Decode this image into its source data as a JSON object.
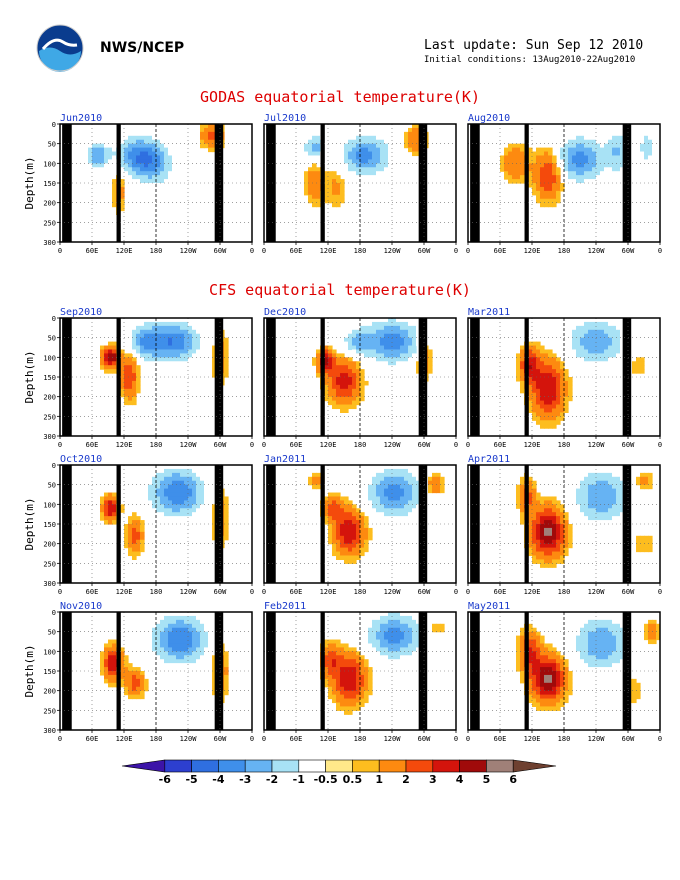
{
  "header": {
    "org": "NWS/NCEP",
    "last_update": "Last update: Sun Sep 12 2010",
    "initial_conditions": "Initial conditions: 13Aug2010-22Aug2010"
  },
  "sections": [
    {
      "title": "GODAS equatorial temperature(K)"
    },
    {
      "title": "CFS equatorial temperature(K)"
    }
  ],
  "colors": {
    "title": "#dd0000",
    "panel_label": "#1a3acc",
    "land_mask": "#000000",
    "palette": [
      "#3c14a8",
      "#2d3fcf",
      "#2f6fe0",
      "#3f8fea",
      "#66b3f3",
      "#a8e2f5",
      "#ffffff",
      "#ffe98a",
      "#fdbd1f",
      "#fd8a10",
      "#f44a0c",
      "#d4140c",
      "#a00a0a",
      "#a08078",
      "#6e4030"
    ]
  },
  "chart_data": {
    "type": "heatmap",
    "variable": "equatorial temperature anomaly (K)",
    "y": {
      "label": "Depth(m)",
      "ticks": [
        "0",
        "50",
        "100",
        "150",
        "200",
        "250",
        "300"
      ],
      "range": [
        0,
        300
      ],
      "inverted": true
    },
    "x": {
      "ticks": [
        "0",
        "60E",
        "120E",
        "180",
        "120W",
        "60W",
        "0"
      ],
      "range_deg_east": [
        0,
        360
      ]
    },
    "colorbar": {
      "labels": [
        "-6",
        "-5",
        "-4",
        "-3",
        "-2",
        "-1",
        "-0.5",
        "0.5",
        "1",
        "2",
        "3",
        "4",
        "5",
        "6"
      ],
      "levels": [
        -6,
        -5,
        -4,
        -3,
        -2,
        -1,
        -0.5,
        0.5,
        1,
        2,
        3,
        4,
        5,
        6
      ]
    },
    "panels": [
      {
        "group": 0,
        "label": "Jun2010",
        "blobs": [
          {
            "lon": 150,
            "depth": 80,
            "w": 40,
            "h": 45,
            "amp": -3.5
          },
          {
            "lon": 175,
            "depth": 110,
            "w": 35,
            "h": 45,
            "amp": -2.0
          },
          {
            "lon": 70,
            "depth": 80,
            "w": 20,
            "h": 30,
            "amp": -3.0
          },
          {
            "lon": 110,
            "depth": 170,
            "w": 12,
            "h": 55,
            "amp": 1.6
          },
          {
            "lon": 285,
            "depth": 30,
            "w": 20,
            "h": 30,
            "amp": 2.5
          }
        ]
      },
      {
        "group": 0,
        "label": "Jul2010",
        "blobs": [
          {
            "lon": 190,
            "depth": 80,
            "w": 40,
            "h": 45,
            "amp": -3.5
          },
          {
            "lon": 95,
            "depth": 60,
            "w": 18,
            "h": 30,
            "amp": -2.5
          },
          {
            "lon": 95,
            "depth": 150,
            "w": 18,
            "h": 55,
            "amp": 1.6
          },
          {
            "lon": 285,
            "depth": 40,
            "w": 20,
            "h": 35,
            "amp": 1.8
          },
          {
            "lon": 135,
            "depth": 160,
            "w": 20,
            "h": 50,
            "amp": 1.2
          }
        ]
      },
      {
        "group": 0,
        "label": "Aug2010",
        "blobs": [
          {
            "lon": 150,
            "depth": 130,
            "w": 25,
            "h": 60,
            "amp": 3.0
          },
          {
            "lon": 210,
            "depth": 90,
            "w": 40,
            "h": 50,
            "amp": -3.5
          },
          {
            "lon": 90,
            "depth": 100,
            "w": 25,
            "h": 45,
            "amp": 2.0
          },
          {
            "lon": 280,
            "depth": 70,
            "w": 20,
            "h": 50,
            "amp": -2.0
          },
          {
            "lon": 335,
            "depth": 60,
            "w": 15,
            "h": 40,
            "amp": -1.5
          }
        ]
      },
      {
        "group": 1,
        "label": "Sep2010",
        "blobs": [
          {
            "lon": 95,
            "depth": 100,
            "w": 15,
            "h": 25,
            "amp": 5.0
          },
          {
            "lon": 130,
            "depth": 150,
            "w": 15,
            "h": 55,
            "amp": 3.0
          },
          {
            "lon": 210,
            "depth": 60,
            "w": 45,
            "h": 45,
            "amp": -4.0
          },
          {
            "lon": 160,
            "depth": 60,
            "w": 25,
            "h": 40,
            "amp": -2.5
          },
          {
            "lon": 300,
            "depth": 100,
            "w": 15,
            "h": 70,
            "amp": 1.5
          }
        ]
      },
      {
        "group": 1,
        "label": "Dec2010",
        "blobs": [
          {
            "lon": 150,
            "depth": 160,
            "w": 30,
            "h": 55,
            "amp": 3.5
          },
          {
            "lon": 115,
            "depth": 110,
            "w": 15,
            "h": 30,
            "amp": 4.0
          },
          {
            "lon": 240,
            "depth": 60,
            "w": 50,
            "h": 50,
            "amp": -3.5
          },
          {
            "lon": 300,
            "depth": 100,
            "w": 15,
            "h": 55,
            "amp": 1.8
          },
          {
            "lon": 175,
            "depth": 60,
            "w": 25,
            "h": 30,
            "amp": -2.0
          }
        ]
      },
      {
        "group": 1,
        "label": "Mar2011",
        "blobs": [
          {
            "lon": 150,
            "depth": 180,
            "w": 30,
            "h": 70,
            "amp": 4.0
          },
          {
            "lon": 115,
            "depth": 120,
            "w": 18,
            "h": 45,
            "amp": 3.5
          },
          {
            "lon": 240,
            "depth": 60,
            "w": 45,
            "h": 50,
            "amp": -3.0
          },
          {
            "lon": 320,
            "depth": 120,
            "w": 15,
            "h": 30,
            "amp": 1.0
          }
        ]
      },
      {
        "group": 1,
        "label": "Oct2010",
        "blobs": [
          {
            "lon": 95,
            "depth": 110,
            "w": 15,
            "h": 30,
            "amp": 4.0
          },
          {
            "lon": 140,
            "depth": 180,
            "w": 15,
            "h": 45,
            "amp": 2.5
          },
          {
            "lon": 220,
            "depth": 70,
            "w": 45,
            "h": 55,
            "amp": -4.0
          },
          {
            "lon": 300,
            "depth": 130,
            "w": 15,
            "h": 80,
            "amp": 1.5
          }
        ]
      },
      {
        "group": 1,
        "label": "Jan2011",
        "blobs": [
          {
            "lon": 160,
            "depth": 170,
            "w": 28,
            "h": 55,
            "amp": 4.0
          },
          {
            "lon": 130,
            "depth": 110,
            "w": 18,
            "h": 30,
            "amp": 2.5
          },
          {
            "lon": 245,
            "depth": 70,
            "w": 45,
            "h": 55,
            "amp": -3.5
          },
          {
            "lon": 320,
            "depth": 50,
            "w": 15,
            "h": 25,
            "amp": 2.0
          },
          {
            "lon": 100,
            "depth": 40,
            "w": 15,
            "h": 20,
            "amp": 1.5
          }
        ]
      },
      {
        "group": 1,
        "label": "Apr2011",
        "blobs": [
          {
            "lon": 150,
            "depth": 170,
            "w": 30,
            "h": 60,
            "amp": 5.2
          },
          {
            "lon": 110,
            "depth": 80,
            "w": 15,
            "h": 45,
            "amp": 2.5
          },
          {
            "lon": 250,
            "depth": 80,
            "w": 45,
            "h": 60,
            "amp": -3.0
          },
          {
            "lon": 330,
            "depth": 200,
            "w": 20,
            "h": 30,
            "amp": 1.0
          },
          {
            "lon": 330,
            "depth": 40,
            "w": 15,
            "h": 25,
            "amp": 1.5
          }
        ]
      },
      {
        "group": 1,
        "label": "Nov2010",
        "blobs": [
          {
            "lon": 100,
            "depth": 130,
            "w": 18,
            "h": 40,
            "amp": 4.0
          },
          {
            "lon": 140,
            "depth": 180,
            "w": 18,
            "h": 35,
            "amp": 2.5
          },
          {
            "lon": 225,
            "depth": 70,
            "w": 45,
            "h": 55,
            "amp": -4.0
          },
          {
            "lon": 300,
            "depth": 150,
            "w": 15,
            "h": 70,
            "amp": 1.8
          }
        ]
      },
      {
        "group": 1,
        "label": "Feb2011",
        "blobs": [
          {
            "lon": 160,
            "depth": 170,
            "w": 30,
            "h": 60,
            "amp": 4.0
          },
          {
            "lon": 125,
            "depth": 120,
            "w": 18,
            "h": 40,
            "amp": 2.5
          },
          {
            "lon": 245,
            "depth": 60,
            "w": 45,
            "h": 50,
            "amp": -3.5
          },
          {
            "lon": 325,
            "depth": 40,
            "w": 15,
            "h": 20,
            "amp": 1.0
          }
        ]
      },
      {
        "group": 1,
        "label": "May2011",
        "blobs": [
          {
            "lon": 150,
            "depth": 170,
            "w": 30,
            "h": 55,
            "amp": 5.3
          },
          {
            "lon": 115,
            "depth": 100,
            "w": 20,
            "h": 50,
            "amp": 3.0
          },
          {
            "lon": 250,
            "depth": 80,
            "w": 45,
            "h": 60,
            "amp": -3.0
          },
          {
            "lon": 345,
            "depth": 50,
            "w": 15,
            "h": 25,
            "amp": 1.8
          },
          {
            "lon": 310,
            "depth": 200,
            "w": 15,
            "h": 40,
            "amp": 1.0
          }
        ]
      }
    ]
  }
}
